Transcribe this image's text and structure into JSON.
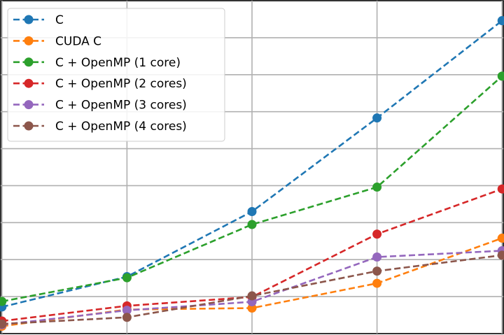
{
  "chart_data": {
    "type": "line",
    "x": [
      1,
      2,
      3,
      4,
      5
    ],
    "xlim": [
      0.99,
      5.01
    ],
    "ylim": [
      0,
      90
    ],
    "grid": true,
    "legend_position": "top-left",
    "series": [
      {
        "name": "C",
        "color": "#1f77b4",
        "values": [
          7.2,
          15.4,
          33.0,
          58.3,
          84.6
        ]
      },
      {
        "name": "CUDA C",
        "color": "#ff7f0e",
        "values": [
          2.0,
          6.5,
          6.9,
          13.6,
          25.8
        ]
      },
      {
        "name": "C + OpenMP (1 core)",
        "color": "#2ca02c",
        "values": [
          8.7,
          15.1,
          29.5,
          39.6,
          69.6
        ]
      },
      {
        "name": "C + OpenMP (2 cores)",
        "color": "#d62728",
        "values": [
          3.4,
          7.5,
          9.9,
          26.9,
          39.1
        ]
      },
      {
        "name": "C + OpenMP (3 cores)",
        "color": "#9467bd",
        "values": [
          2.4,
          6.3,
          8.6,
          20.7,
          22.4
        ]
      },
      {
        "name": "C + OpenMP (4 cores)",
        "color": "#8c564b",
        "values": [
          2.6,
          4.4,
          10.2,
          16.9,
          21.2
        ]
      }
    ]
  }
}
